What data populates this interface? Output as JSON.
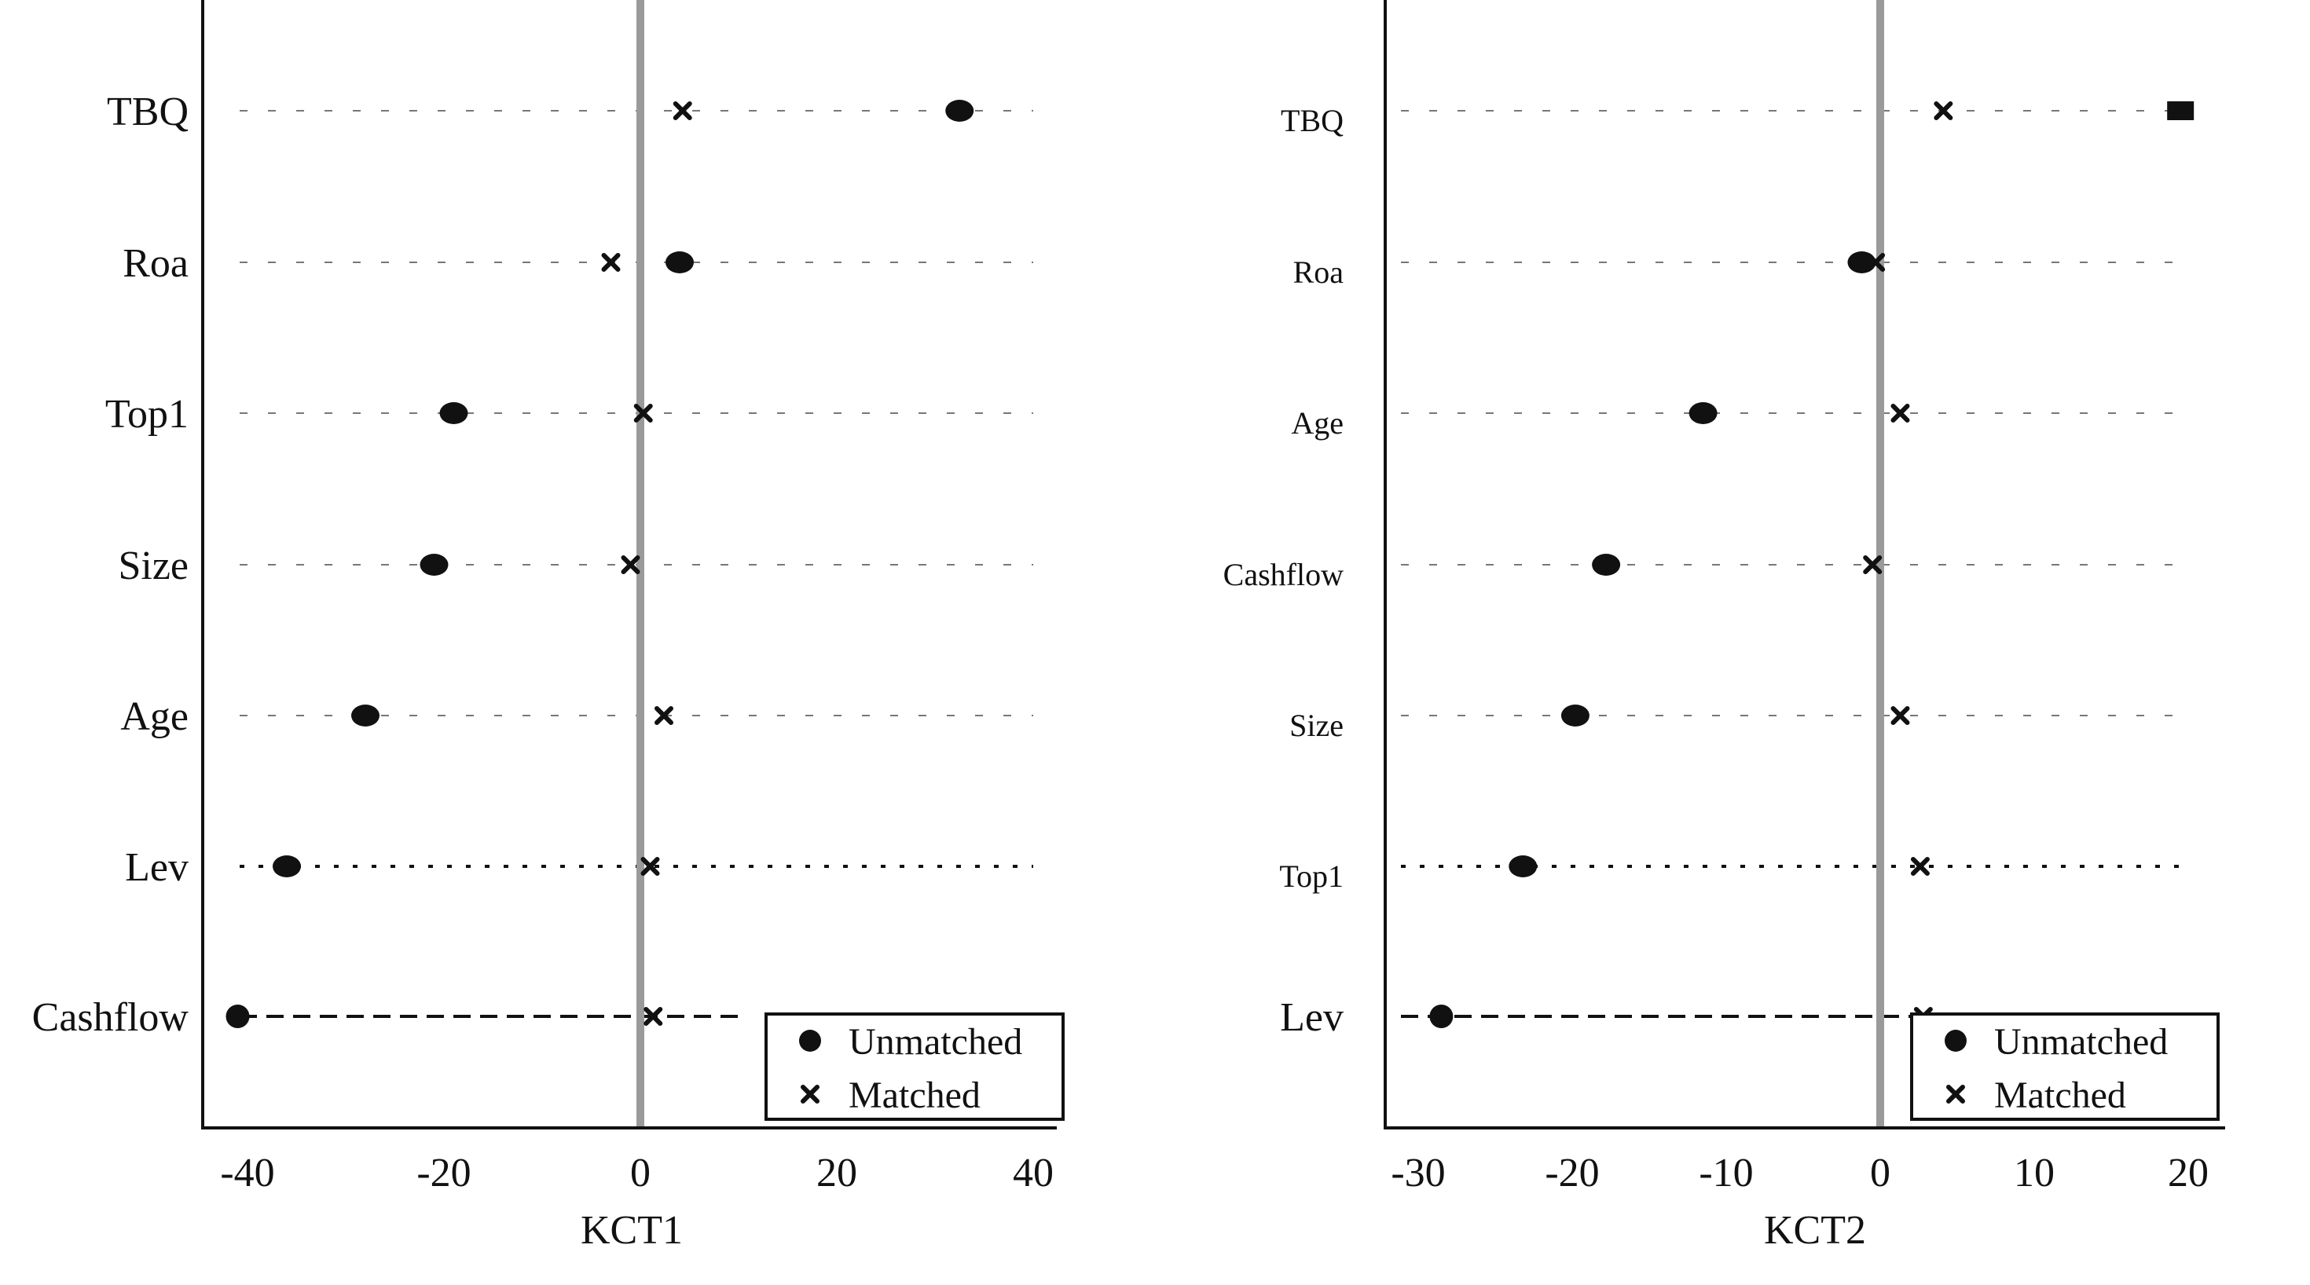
{
  "chart_data": [
    {
      "type": "scatter",
      "title": "",
      "xlabel": "KCT1",
      "ylabel": "",
      "xlim": [
        -45,
        45
      ],
      "xticks": [
        -40,
        -20,
        0,
        20,
        40
      ],
      "xtick_labels": [
        "-40",
        "-20",
        "0",
        "20",
        "40"
      ],
      "reference_line_x": 0,
      "categories": [
        "TBQ",
        "Roa",
        "Top1",
        "Size",
        "Age",
        "Lev",
        "Cashflow"
      ],
      "series": [
        {
          "name": "Unmatched",
          "marker": "circle",
          "values": [
            32.5,
            4,
            -19,
            -21,
            -28,
            -36,
            -41
          ]
        },
        {
          "name": "Matched",
          "marker": "x",
          "values": [
            4.3,
            -3,
            0.3,
            -1,
            2.4,
            1,
            1.3
          ]
        }
      ],
      "legend": "bottom-right",
      "grid": "dashed horizontal lines per category"
    },
    {
      "type": "scatter",
      "title": "",
      "xlabel": "KCT2",
      "ylabel": "",
      "xlim": [
        -33,
        23
      ],
      "xticks": [
        -30,
        -20,
        -10,
        0,
        10,
        20
      ],
      "xtick_labels": [
        "-30",
        "-20",
        "-10",
        "0",
        "10",
        "20"
      ],
      "reference_line_x": 0,
      "categories": [
        "TBQ",
        "Roa",
        "Age",
        "Cashflow",
        "Size",
        "Top1",
        "Lev"
      ],
      "series": [
        {
          "name": "Unmatched",
          "marker": "circle",
          "values": [
            19.5,
            -1.2,
            -11.5,
            -17.8,
            -19.8,
            -23.2,
            -28.5
          ]
        },
        {
          "name": "Matched",
          "marker": "x",
          "values": [
            4.1,
            -0.3,
            1.3,
            -0.5,
            1.3,
            2.6,
            2.8
          ]
        }
      ],
      "legend": "bottom-right",
      "grid": "dashed horizontal lines per category"
    }
  ]
}
